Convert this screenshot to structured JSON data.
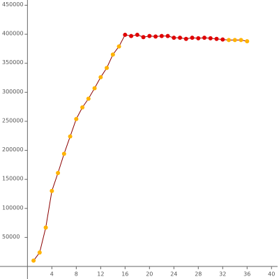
{
  "chart_data": {
    "type": "line",
    "x": [
      1,
      2,
      3,
      4,
      5,
      6,
      7,
      8,
      9,
      10,
      11,
      12,
      13,
      14,
      15,
      16,
      17,
      18,
      19,
      20,
      21,
      22,
      23,
      24,
      25,
      26,
      27,
      28,
      29,
      30,
      31,
      32,
      33,
      34,
      35,
      36
    ],
    "series": [
      {
        "color": "#8b0000",
        "values": [
          10000,
          24000,
          67000,
          130000,
          161000,
          194000,
          224000,
          254000,
          274000,
          289000,
          307000,
          326000,
          342000,
          365000,
          379000,
          399000,
          397000,
          399000,
          395000,
          397000,
          396000,
          397000,
          397000,
          394000,
          394000,
          392000,
          394000,
          393000,
          394000,
          393000,
          392000,
          391000,
          390000,
          390000,
          390000,
          388000
        ],
        "marker_colors": [
          "#ffb300",
          "#ffb300",
          "#ffb300",
          "#ffb300",
          "#ffb300",
          "#ffb300",
          "#ffb300",
          "#ffb300",
          "#ffb300",
          "#ffb300",
          "#ffb300",
          "#ffb300",
          "#ffb300",
          "#ffb300",
          "#ffb300",
          "#e00000",
          "#e00000",
          "#e00000",
          "#e00000",
          "#e00000",
          "#e00000",
          "#e00000",
          "#e00000",
          "#e00000",
          "#e00000",
          "#e00000",
          "#e00000",
          "#e00000",
          "#e00000",
          "#e00000",
          "#e00000",
          "#e00000",
          "#ffb300",
          "#ffb300",
          "#ffb300",
          "#ffb300"
        ]
      }
    ],
    "xlim": [
      -4.5,
      41
    ],
    "ylim": [
      0,
      459000
    ],
    "xticks": [
      4,
      8,
      12,
      16,
      20,
      24,
      28,
      32,
      36,
      40
    ],
    "yticks": [
      50000,
      100000,
      150000,
      200000,
      250000,
      300000,
      350000,
      400000,
      450000
    ]
  }
}
